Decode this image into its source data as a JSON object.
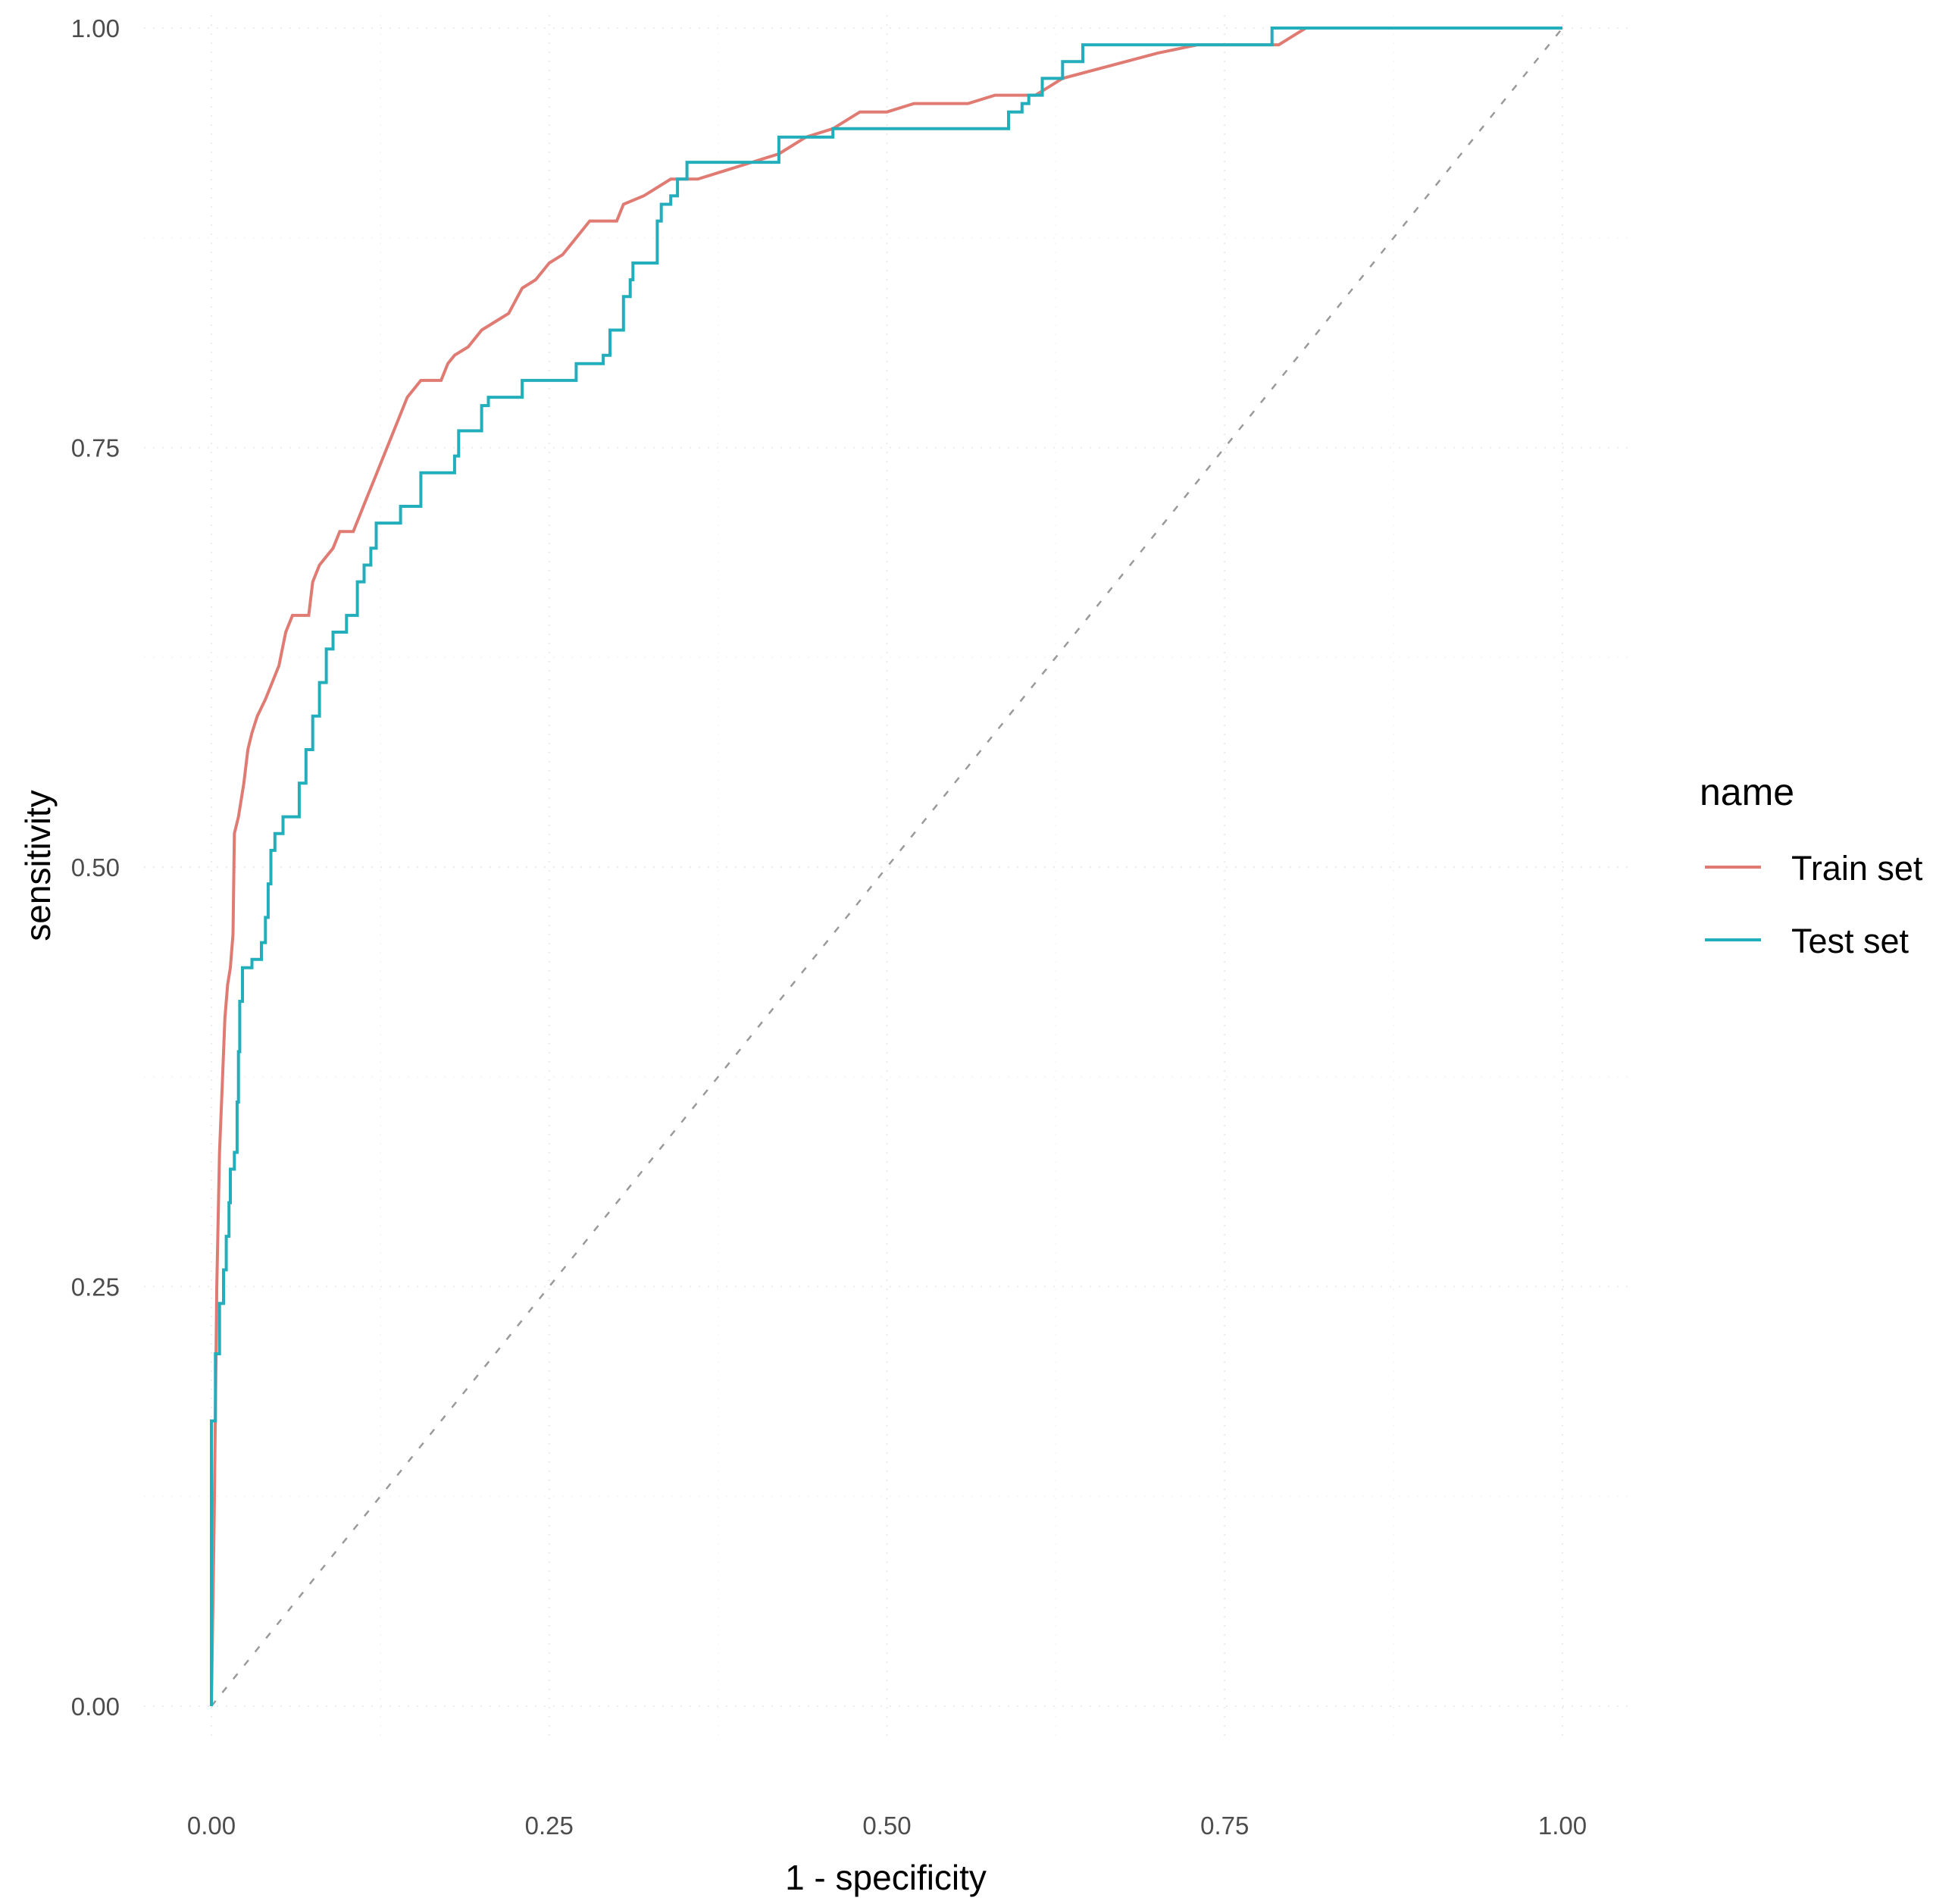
{
  "chart_data": {
    "type": "line",
    "title": "",
    "xlabel": "1 - specificity",
    "ylabel": "sensitivity",
    "xlim": [
      0,
      1
    ],
    "ylim": [
      0,
      1
    ],
    "x_ticks": [
      "0.00",
      "0.25",
      "0.50",
      "0.75",
      "1.00"
    ],
    "y_ticks": [
      "0.00",
      "0.25",
      "0.50",
      "0.75",
      "1.00"
    ],
    "grid": true,
    "reference_line": "diagonal dashed y = x",
    "legend": {
      "title": "name",
      "position": "right",
      "entries": [
        "Train set",
        "Test set"
      ]
    },
    "series": [
      {
        "name": "Train set",
        "color": "#e07b73",
        "points": [
          [
            0.0,
            0.0
          ],
          [
            0.002,
            0.11
          ],
          [
            0.004,
            0.25
          ],
          [
            0.006,
            0.33
          ],
          [
            0.008,
            0.37
          ],
          [
            0.01,
            0.41
          ],
          [
            0.012,
            0.43
          ],
          [
            0.014,
            0.44
          ],
          [
            0.016,
            0.46
          ],
          [
            0.017,
            0.52
          ],
          [
            0.02,
            0.53
          ],
          [
            0.024,
            0.55
          ],
          [
            0.027,
            0.57
          ],
          [
            0.03,
            0.58
          ],
          [
            0.034,
            0.59
          ],
          [
            0.04,
            0.6
          ],
          [
            0.045,
            0.61
          ],
          [
            0.05,
            0.62
          ],
          [
            0.055,
            0.64
          ],
          [
            0.06,
            0.65
          ],
          [
            0.072,
            0.65
          ],
          [
            0.075,
            0.67
          ],
          [
            0.08,
            0.68
          ],
          [
            0.09,
            0.69
          ],
          [
            0.095,
            0.7
          ],
          [
            0.105,
            0.7
          ],
          [
            0.11,
            0.71
          ],
          [
            0.115,
            0.72
          ],
          [
            0.12,
            0.73
          ],
          [
            0.125,
            0.74
          ],
          [
            0.13,
            0.75
          ],
          [
            0.135,
            0.76
          ],
          [
            0.14,
            0.77
          ],
          [
            0.145,
            0.78
          ],
          [
            0.155,
            0.79
          ],
          [
            0.17,
            0.79
          ],
          [
            0.175,
            0.8
          ],
          [
            0.18,
            0.805
          ],
          [
            0.19,
            0.81
          ],
          [
            0.2,
            0.82
          ],
          [
            0.21,
            0.825
          ],
          [
            0.22,
            0.83
          ],
          [
            0.23,
            0.845
          ],
          [
            0.24,
            0.85
          ],
          [
            0.25,
            0.86
          ],
          [
            0.26,
            0.865
          ],
          [
            0.27,
            0.875
          ],
          [
            0.28,
            0.885
          ],
          [
            0.3,
            0.885
          ],
          [
            0.305,
            0.895
          ],
          [
            0.32,
            0.9
          ],
          [
            0.34,
            0.91
          ],
          [
            0.36,
            0.91
          ],
          [
            0.38,
            0.915
          ],
          [
            0.4,
            0.92
          ],
          [
            0.42,
            0.925
          ],
          [
            0.44,
            0.935
          ],
          [
            0.46,
            0.94
          ],
          [
            0.48,
            0.95
          ],
          [
            0.5,
            0.95
          ],
          [
            0.52,
            0.955
          ],
          [
            0.56,
            0.955
          ],
          [
            0.58,
            0.96
          ],
          [
            0.61,
            0.96
          ],
          [
            0.63,
            0.97
          ],
          [
            0.7,
            0.985
          ],
          [
            0.73,
            0.99
          ],
          [
            0.79,
            0.99
          ],
          [
            0.8,
            0.995
          ],
          [
            0.81,
            1.0
          ],
          [
            1.0,
            1.0
          ]
        ]
      },
      {
        "name": "Test set",
        "color": "#22aebb",
        "points": [
          [
            0.0,
            0.0
          ],
          [
            0.0,
            0.17
          ],
          [
            0.003,
            0.17
          ],
          [
            0.003,
            0.21
          ],
          [
            0.006,
            0.21
          ],
          [
            0.006,
            0.24
          ],
          [
            0.009,
            0.24
          ],
          [
            0.009,
            0.26
          ],
          [
            0.011,
            0.26
          ],
          [
            0.011,
            0.28
          ],
          [
            0.013,
            0.28
          ],
          [
            0.013,
            0.3
          ],
          [
            0.014,
            0.3
          ],
          [
            0.014,
            0.32
          ],
          [
            0.017,
            0.32
          ],
          [
            0.017,
            0.33
          ],
          [
            0.019,
            0.33
          ],
          [
            0.019,
            0.36
          ],
          [
            0.02,
            0.36
          ],
          [
            0.02,
            0.39
          ],
          [
            0.021,
            0.39
          ],
          [
            0.021,
            0.42
          ],
          [
            0.023,
            0.42
          ],
          [
            0.023,
            0.44
          ],
          [
            0.03,
            0.44
          ],
          [
            0.03,
            0.445
          ],
          [
            0.037,
            0.445
          ],
          [
            0.037,
            0.455
          ],
          [
            0.04,
            0.455
          ],
          [
            0.04,
            0.47
          ],
          [
            0.042,
            0.47
          ],
          [
            0.042,
            0.49
          ],
          [
            0.044,
            0.49
          ],
          [
            0.044,
            0.51
          ],
          [
            0.047,
            0.51
          ],
          [
            0.047,
            0.52
          ],
          [
            0.053,
            0.52
          ],
          [
            0.053,
            0.53
          ],
          [
            0.065,
            0.53
          ],
          [
            0.065,
            0.55
          ],
          [
            0.07,
            0.55
          ],
          [
            0.07,
            0.57
          ],
          [
            0.075,
            0.57
          ],
          [
            0.075,
            0.59
          ],
          [
            0.08,
            0.59
          ],
          [
            0.08,
            0.61
          ],
          [
            0.085,
            0.61
          ],
          [
            0.085,
            0.63
          ],
          [
            0.09,
            0.63
          ],
          [
            0.09,
            0.64
          ],
          [
            0.1,
            0.64
          ],
          [
            0.1,
            0.65
          ],
          [
            0.108,
            0.65
          ],
          [
            0.108,
            0.67
          ],
          [
            0.113,
            0.67
          ],
          [
            0.113,
            0.68
          ],
          [
            0.118,
            0.68
          ],
          [
            0.118,
            0.69
          ],
          [
            0.122,
            0.69
          ],
          [
            0.122,
            0.705
          ],
          [
            0.14,
            0.705
          ],
          [
            0.14,
            0.715
          ],
          [
            0.155,
            0.715
          ],
          [
            0.155,
            0.735
          ],
          [
            0.18,
            0.735
          ],
          [
            0.18,
            0.745
          ],
          [
            0.183,
            0.745
          ],
          [
            0.183,
            0.76
          ],
          [
            0.2,
            0.76
          ],
          [
            0.2,
            0.775
          ],
          [
            0.205,
            0.775
          ],
          [
            0.205,
            0.78
          ],
          [
            0.23,
            0.78
          ],
          [
            0.23,
            0.79
          ],
          [
            0.27,
            0.79
          ],
          [
            0.27,
            0.8
          ],
          [
            0.29,
            0.8
          ],
          [
            0.29,
            0.805
          ],
          [
            0.295,
            0.805
          ],
          [
            0.295,
            0.82
          ],
          [
            0.305,
            0.82
          ],
          [
            0.305,
            0.84
          ],
          [
            0.31,
            0.84
          ],
          [
            0.31,
            0.85
          ],
          [
            0.312,
            0.85
          ],
          [
            0.312,
            0.86
          ],
          [
            0.33,
            0.86
          ],
          [
            0.33,
            0.885
          ],
          [
            0.333,
            0.885
          ],
          [
            0.333,
            0.895
          ],
          [
            0.34,
            0.895
          ],
          [
            0.34,
            0.9
          ],
          [
            0.345,
            0.9
          ],
          [
            0.345,
            0.91
          ],
          [
            0.352,
            0.91
          ],
          [
            0.352,
            0.92
          ],
          [
            0.42,
            0.92
          ],
          [
            0.42,
            0.935
          ],
          [
            0.46,
            0.935
          ],
          [
            0.46,
            0.94
          ],
          [
            0.59,
            0.94
          ],
          [
            0.59,
            0.95
          ],
          [
            0.6,
            0.95
          ],
          [
            0.6,
            0.955
          ],
          [
            0.605,
            0.955
          ],
          [
            0.605,
            0.96
          ],
          [
            0.615,
            0.96
          ],
          [
            0.615,
            0.97
          ],
          [
            0.63,
            0.97
          ],
          [
            0.63,
            0.98
          ],
          [
            0.645,
            0.98
          ],
          [
            0.645,
            0.99
          ],
          [
            0.785,
            0.99
          ],
          [
            0.785,
            1.0
          ],
          [
            1.0,
            1.0
          ]
        ]
      }
    ]
  }
}
